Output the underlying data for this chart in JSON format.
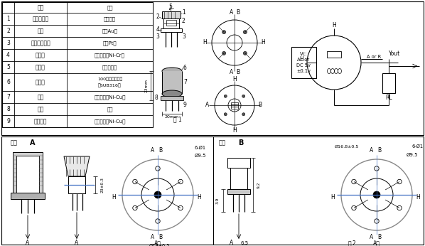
{
  "bg_color": "#ffffff",
  "table_headers": [
    "部件",
    "材料"
  ],
  "table_rows": [
    [
      "1",
      "气体敏感层",
      "二氧化锡"
    ],
    [
      "2",
      "电极",
      "金（Au）"
    ],
    [
      "3",
      "测量电极引线",
      "铂（Pt）"
    ],
    [
      "4",
      "加热器",
      "镍铬合金（Ni-Cr）"
    ],
    [
      "5",
      "陶瓷管",
      "三氧化二铝"
    ],
    [
      "6",
      "防爆网",
      "100目双层不锈钢（SUB316）"
    ],
    [
      "7",
      "卡环",
      "镀镍铜材（Ni-Cu）"
    ],
    [
      "8",
      "基座",
      "胶木"
    ],
    [
      "9",
      "针状管脚",
      "镀镍铜材（Ni-Cu）"
    ]
  ],
  "blue": "#4472c4",
  "gray1": "#b0b0b0",
  "gray2": "#c8c8c8",
  "gray3": "#888888",
  "gray4": "#d8d8d8"
}
